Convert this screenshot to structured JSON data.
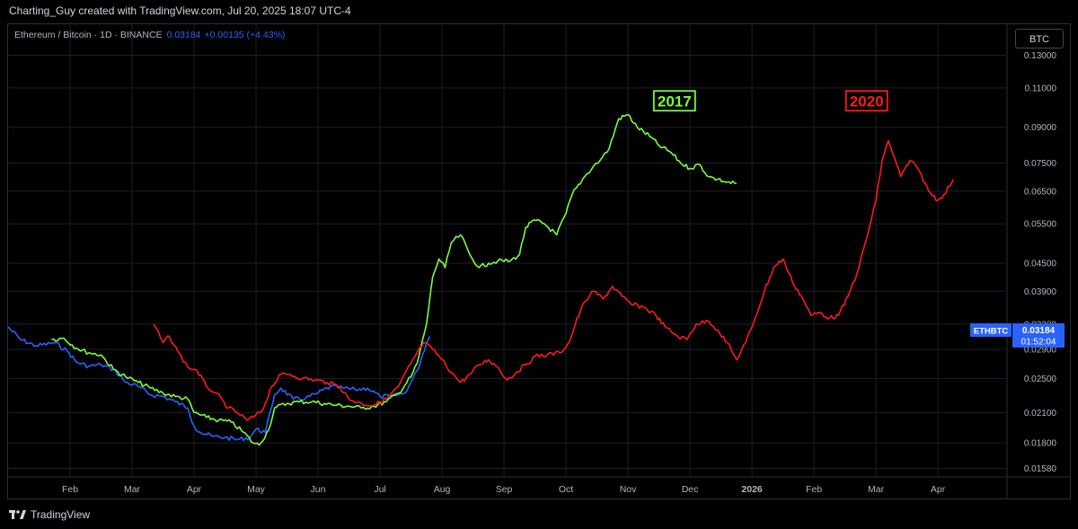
{
  "header": {
    "credit": "Charting_Guy created with TradingView.com, Jul 20, 2025 18:07 UTC-4"
  },
  "legend": {
    "symbol": "Ethereum / Bitcoin · 1D · BINANCE",
    "price": "0.03184",
    "change": "+0.00135 (+4.43%)"
  },
  "currency_button": "BTC",
  "price_tag": {
    "symbol": "ETHBTC",
    "value": "0.03184",
    "countdown": "01:52:04"
  },
  "footer": {
    "brand": "TradingView"
  },
  "colors": {
    "series_2017": "#7cfc3c",
    "series_2020": "#ff1a1a",
    "series_current": "#2962ff",
    "background": "#000000",
    "grid": "#1c1f26"
  },
  "chart_data": {
    "type": "line",
    "y_scale": "log",
    "ylim": [
      0.0152,
      0.137
    ],
    "y_ticks": [
      0.13,
      0.11,
      0.09,
      0.075,
      0.065,
      0.055,
      0.045,
      0.039,
      0.033,
      0.029,
      0.025,
      0.021,
      0.018,
      0.0158
    ],
    "y_tick_labels": [
      "0.13000",
      "0.11000",
      "0.09000",
      "0.07500",
      "0.06500",
      "0.05500",
      "0.04500",
      "0.03900",
      "0.03300",
      "0.02900",
      "0.02500",
      "0.02100",
      "0.01800",
      "0.01580"
    ],
    "x_ticks": [
      {
        "label": "Feb",
        "t": 1.0
      },
      {
        "label": "Mar",
        "t": 2.0
      },
      {
        "label": "Apr",
        "t": 3.0
      },
      {
        "label": "May",
        "t": 4.0
      },
      {
        "label": "Jun",
        "t": 5.0
      },
      {
        "label": "Jul",
        "t": 6.0
      },
      {
        "label": "Aug",
        "t": 7.0
      },
      {
        "label": "Sep",
        "t": 8.0
      },
      {
        "label": "Oct",
        "t": 9.0
      },
      {
        "label": "Nov",
        "t": 10.0
      },
      {
        "label": "Dec",
        "t": 11.0
      },
      {
        "label": "2026",
        "t": 12.0
      },
      {
        "label": "Feb",
        "t": 13.0
      },
      {
        "label": "Mar",
        "t": 14.0
      },
      {
        "label": "Apr",
        "t": 15.0
      }
    ],
    "xlim": [
      0.0,
      16.1
    ],
    "annotations": [
      {
        "text": "2017",
        "t": 10.75,
        "y": 0.103,
        "color": "#7cfc3c"
      },
      {
        "text": "2020",
        "t": 13.85,
        "y": 0.103,
        "color": "#ff1a1a"
      }
    ],
    "series": [
      {
        "color": "#2962ff",
        "points": [
          [
            0.0,
            0.0325
          ],
          [
            0.2,
            0.0305
          ],
          [
            0.45,
            0.0295
          ],
          [
            0.75,
            0.03
          ],
          [
            0.95,
            0.0288
          ],
          [
            1.1,
            0.0272
          ],
          [
            1.3,
            0.0266
          ],
          [
            1.5,
            0.0268
          ],
          [
            1.7,
            0.0262
          ],
          [
            1.9,
            0.0245
          ],
          [
            2.1,
            0.024
          ],
          [
            2.3,
            0.023
          ],
          [
            2.5,
            0.0228
          ],
          [
            2.7,
            0.0222
          ],
          [
            2.9,
            0.0215
          ],
          [
            3.0,
            0.0196
          ],
          [
            3.1,
            0.019
          ],
          [
            3.3,
            0.0186
          ],
          [
            3.5,
            0.0185
          ],
          [
            3.7,
            0.0183
          ],
          [
            3.9,
            0.0185
          ],
          [
            4.0,
            0.0193
          ],
          [
            4.15,
            0.019
          ],
          [
            4.3,
            0.023
          ],
          [
            4.4,
            0.0238
          ],
          [
            4.6,
            0.0225
          ],
          [
            4.8,
            0.0226
          ],
          [
            5.0,
            0.0232
          ],
          [
            5.2,
            0.024
          ],
          [
            5.4,
            0.0238
          ],
          [
            5.6,
            0.0236
          ],
          [
            5.8,
            0.0238
          ],
          [
            6.0,
            0.0228
          ],
          [
            6.2,
            0.0228
          ],
          [
            6.4,
            0.0232
          ],
          [
            6.5,
            0.0245
          ],
          [
            6.6,
            0.026
          ],
          [
            6.75,
            0.03
          ],
          [
            6.8,
            0.031
          ]
        ]
      },
      {
        "color": "#7cfc3c",
        "points": [
          [
            0.7,
            0.0305
          ],
          [
            0.9,
            0.0307
          ],
          [
            1.1,
            0.0292
          ],
          [
            1.3,
            0.0285
          ],
          [
            1.5,
            0.0282
          ],
          [
            1.7,
            0.0262
          ],
          [
            1.9,
            0.0252
          ],
          [
            2.1,
            0.0245
          ],
          [
            2.3,
            0.0238
          ],
          [
            2.5,
            0.0232
          ],
          [
            2.7,
            0.0228
          ],
          [
            2.9,
            0.0225
          ],
          [
            3.0,
            0.021
          ],
          [
            3.2,
            0.0205
          ],
          [
            3.4,
            0.0202
          ],
          [
            3.6,
            0.02
          ],
          [
            3.8,
            0.019
          ],
          [
            3.95,
            0.018
          ],
          [
            4.05,
            0.0178
          ],
          [
            4.2,
            0.0192
          ],
          [
            4.3,
            0.0215
          ],
          [
            4.5,
            0.022
          ],
          [
            4.7,
            0.0222
          ],
          [
            4.9,
            0.0222
          ],
          [
            5.1,
            0.022
          ],
          [
            5.3,
            0.0218
          ],
          [
            5.5,
            0.0217
          ],
          [
            5.7,
            0.0215
          ],
          [
            5.9,
            0.0217
          ],
          [
            6.1,
            0.0222
          ],
          [
            6.3,
            0.0232
          ],
          [
            6.5,
            0.0252
          ],
          [
            6.6,
            0.027
          ],
          [
            6.75,
            0.033
          ],
          [
            6.85,
            0.042
          ],
          [
            6.95,
            0.046
          ],
          [
            7.05,
            0.044
          ],
          [
            7.15,
            0.05
          ],
          [
            7.3,
            0.052
          ],
          [
            7.45,
            0.047
          ],
          [
            7.6,
            0.044
          ],
          [
            7.75,
            0.045
          ],
          [
            7.9,
            0.0455
          ],
          [
            8.1,
            0.0455
          ],
          [
            8.25,
            0.047
          ],
          [
            8.35,
            0.054
          ],
          [
            8.5,
            0.056
          ],
          [
            8.65,
            0.055
          ],
          [
            8.85,
            0.052
          ],
          [
            9.0,
            0.058
          ],
          [
            9.1,
            0.064
          ],
          [
            9.3,
            0.07
          ],
          [
            9.45,
            0.074
          ],
          [
            9.55,
            0.076
          ],
          [
            9.7,
            0.081
          ],
          [
            9.85,
            0.094
          ],
          [
            10.0,
            0.096
          ],
          [
            10.15,
            0.09
          ],
          [
            10.35,
            0.086
          ],
          [
            10.5,
            0.082
          ],
          [
            10.7,
            0.079
          ],
          [
            10.85,
            0.075
          ],
          [
            11.0,
            0.073
          ],
          [
            11.15,
            0.0745
          ],
          [
            11.3,
            0.07
          ],
          [
            11.45,
            0.069
          ],
          [
            11.6,
            0.068
          ],
          [
            11.75,
            0.0675
          ]
        ]
      },
      {
        "color": "#ff1a1a",
        "points": [
          [
            2.35,
            0.033
          ],
          [
            2.5,
            0.03
          ],
          [
            2.6,
            0.031
          ],
          [
            2.75,
            0.0285
          ],
          [
            2.9,
            0.0265
          ],
          [
            3.05,
            0.026
          ],
          [
            3.2,
            0.024
          ],
          [
            3.35,
            0.0232
          ],
          [
            3.55,
            0.0215
          ],
          [
            3.7,
            0.021
          ],
          [
            3.85,
            0.0202
          ],
          [
            3.95,
            0.0205
          ],
          [
            4.1,
            0.0212
          ],
          [
            4.25,
            0.024
          ],
          [
            4.4,
            0.0255
          ],
          [
            4.55,
            0.0255
          ],
          [
            4.75,
            0.025
          ],
          [
            4.95,
            0.0248
          ],
          [
            5.15,
            0.0245
          ],
          [
            5.35,
            0.024
          ],
          [
            5.5,
            0.0225
          ],
          [
            5.7,
            0.022
          ],
          [
            5.9,
            0.0218
          ],
          [
            6.1,
            0.0225
          ],
          [
            6.3,
            0.024
          ],
          [
            6.5,
            0.027
          ],
          [
            6.7,
            0.03
          ],
          [
            6.85,
            0.029
          ],
          [
            7.0,
            0.0275
          ],
          [
            7.15,
            0.0258
          ],
          [
            7.3,
            0.0245
          ],
          [
            7.45,
            0.0255
          ],
          [
            7.6,
            0.0268
          ],
          [
            7.75,
            0.0275
          ],
          [
            7.9,
            0.0265
          ],
          [
            8.05,
            0.0248
          ],
          [
            8.2,
            0.0258
          ],
          [
            8.35,
            0.0268
          ],
          [
            8.5,
            0.028
          ],
          [
            8.7,
            0.0282
          ],
          [
            8.9,
            0.0285
          ],
          [
            9.05,
            0.03
          ],
          [
            9.15,
            0.033
          ],
          [
            9.3,
            0.037
          ],
          [
            9.45,
            0.039
          ],
          [
            9.6,
            0.0375
          ],
          [
            9.75,
            0.04
          ],
          [
            9.9,
            0.038
          ],
          [
            10.05,
            0.0365
          ],
          [
            10.25,
            0.036
          ],
          [
            10.45,
            0.0345
          ],
          [
            10.6,
            0.0325
          ],
          [
            10.8,
            0.031
          ],
          [
            10.95,
            0.0305
          ],
          [
            11.1,
            0.033
          ],
          [
            11.3,
            0.0335
          ],
          [
            11.45,
            0.032
          ],
          [
            11.6,
            0.03
          ],
          [
            11.75,
            0.0275
          ],
          [
            11.9,
            0.03
          ],
          [
            12.05,
            0.034
          ],
          [
            12.2,
            0.039
          ],
          [
            12.35,
            0.044
          ],
          [
            12.5,
            0.046
          ],
          [
            12.65,
            0.041
          ],
          [
            12.8,
            0.038
          ],
          [
            12.95,
            0.0345
          ],
          [
            13.1,
            0.035
          ],
          [
            13.25,
            0.034
          ],
          [
            13.4,
            0.0345
          ],
          [
            13.55,
            0.038
          ],
          [
            13.7,
            0.043
          ],
          [
            13.85,
            0.051
          ],
          [
            14.0,
            0.062
          ],
          [
            14.1,
            0.076
          ],
          [
            14.2,
            0.084
          ],
          [
            14.3,
            0.077
          ],
          [
            14.4,
            0.07
          ],
          [
            14.55,
            0.076
          ],
          [
            14.7,
            0.072
          ],
          [
            14.85,
            0.065
          ],
          [
            15.0,
            0.062
          ],
          [
            15.1,
            0.064
          ],
          [
            15.25,
            0.069
          ]
        ]
      }
    ]
  }
}
